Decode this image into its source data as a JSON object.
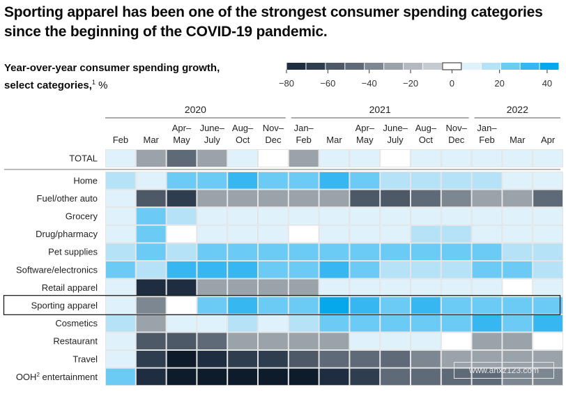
{
  "title": "Sporting apparel has been one of the strongest consumer spending categories since the beginning of the COVID-19 pandemic.",
  "subtitle": {
    "line1": "Year-over-year consumer spending growth,",
    "line2": "select categories,",
    "footnote": "1",
    "unit": " %"
  },
  "watermark": "www.anxz123.com",
  "chart_data": {
    "type": "heatmap",
    "title": "Sporting apparel has been one of the strongest consumer spending categories since the beginning of the COVID-19 pandemic.",
    "value_label": "Year-over-year consumer spending growth, select categories, %",
    "years": [
      {
        "label": "2020",
        "span": 6
      },
      {
        "label": "2021",
        "span": 6
      },
      {
        "label": "2022",
        "span": 3
      }
    ],
    "columns": [
      [
        "Feb"
      ],
      [
        "Mar"
      ],
      [
        "Apr–",
        "May"
      ],
      [
        "June–",
        "July"
      ],
      [
        "Aug–",
        "Oct"
      ],
      [
        "Nov–",
        "Dec"
      ],
      [
        "Jan–",
        "Feb"
      ],
      [
        "Mar"
      ],
      [
        "Apr–",
        "May"
      ],
      [
        "June–",
        "July"
      ],
      [
        "Aug–",
        "Oct"
      ],
      [
        "Nov–",
        "Dec"
      ],
      [
        "Jan–",
        "Feb"
      ],
      [
        "Mar"
      ],
      [
        "Apr"
      ]
    ],
    "rows": [
      {
        "name": "TOTAL",
        "values": [
          5,
          -30,
          -50,
          -30,
          5,
          0,
          -30,
          5,
          5,
          0,
          5,
          5,
          5,
          5,
          5
        ]
      },
      {
        "name": "Home",
        "values": [
          15,
          5,
          30,
          30,
          40,
          30,
          30,
          40,
          25,
          15,
          15,
          15,
          15,
          10,
          5
        ]
      },
      {
        "name": "Fuel/other auto",
        "values": [
          5,
          -60,
          -70,
          -30,
          -30,
          -30,
          -30,
          -30,
          -55,
          -55,
          -45,
          -40,
          -30,
          -30,
          -45
        ]
      },
      {
        "name": "Grocery",
        "values": [
          5,
          35,
          15,
          5,
          5,
          5,
          5,
          5,
          5,
          5,
          5,
          5,
          5,
          5,
          5
        ]
      },
      {
        "name": "Drug/pharmacy",
        "values": [
          5,
          30,
          0,
          5,
          5,
          5,
          0,
          5,
          5,
          5,
          15,
          15,
          5,
          5,
          5
        ]
      },
      {
        "name": "Pet supplies",
        "values": [
          15,
          30,
          15,
          30,
          30,
          30,
          30,
          30,
          30,
          30,
          30,
          30,
          30,
          15,
          15
        ]
      },
      {
        "name": "Software/electronics",
        "values": [
          30,
          15,
          40,
          40,
          40,
          30,
          30,
          40,
          30,
          15,
          15,
          15,
          30,
          30,
          15
        ]
      },
      {
        "name": "Retail apparel",
        "values": [
          5,
          -75,
          -75,
          -30,
          -30,
          -30,
          -30,
          5,
          5,
          5,
          5,
          5,
          5,
          0,
          5
        ]
      },
      {
        "name": "Sporting apparel",
        "values": [
          5,
          -40,
          0,
          35,
          40,
          30,
          30,
          48,
          40,
          35,
          40,
          30,
          30,
          30,
          30
        ]
      },
      {
        "name": "Cosmetics",
        "values": [
          15,
          -30,
          5,
          5,
          15,
          5,
          15,
          30,
          30,
          30,
          30,
          30,
          40,
          30,
          40
        ]
      },
      {
        "name": "Restaurant",
        "values": [
          5,
          -55,
          -55,
          -45,
          -30,
          -30,
          -30,
          -30,
          5,
          5,
          5,
          0,
          -30,
          -30,
          0
        ]
      },
      {
        "name": "Travel",
        "values": [
          5,
          -70,
          -85,
          -75,
          -70,
          -65,
          -60,
          -50,
          -45,
          -45,
          -40,
          -30,
          -30,
          -30,
          -30
        ]
      },
      {
        "name": "OOH entertainment",
        "superscript": "2",
        "values": [
          30,
          -80,
          -90,
          -90,
          -90,
          -90,
          -90,
          -80,
          -70,
          -50,
          -50,
          -50,
          -45,
          -40,
          -40
        ]
      }
    ],
    "highlight_row": "Sporting apparel",
    "legend": {
      "ticks": [
        -80,
        -60,
        -40,
        -20,
        0,
        20,
        40
      ],
      "tick_labels": [
        "−80",
        "−60",
        "−40",
        "−20",
        "0",
        "20",
        "40"
      ],
      "range": [
        -90,
        50
      ],
      "placement": "top-right"
    },
    "colors": {
      "-90": "#0d1b2a",
      "-80": "#1e2e40",
      "-70": "#2f3e4f",
      "-60": "#4d5966",
      "-50": "#5e6a77",
      "-40": "#7d8792",
      "-30": "#9aa2aa",
      "-20": "#b3b9bf",
      "-10": "#c6cbd0",
      "0": "#ffffff",
      "5": "#dff1fb",
      "15": "#b6e2f8",
      "30": "#6ccbf5",
      "40": "#36b7f2",
      "50": "#05a8eb"
    }
  }
}
